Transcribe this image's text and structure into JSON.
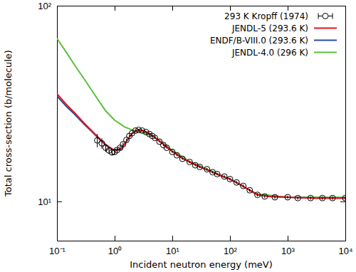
{
  "chart_data": {
    "type": "line",
    "x_label": "Incident neutron energy (meV)",
    "y_label": "Total cross-section (b/molecule)",
    "log": true,
    "grid": false,
    "legend": "upper right",
    "xlim": [
      0.1,
      10000
    ],
    "ylim": [
      6.3,
      100
    ],
    "xticks": [
      {
        "value": 0.1,
        "label": "10⁻¹"
      },
      {
        "value": 1,
        "label": "10⁰"
      },
      {
        "value": 10,
        "label": "10¹"
      },
      {
        "value": 100,
        "label": "10²"
      },
      {
        "value": 1000,
        "label": "10³"
      },
      {
        "value": 10000,
        "label": "10⁴"
      }
    ],
    "yticks": [
      {
        "value": 10,
        "label": "10¹"
      },
      {
        "value": 100,
        "label": "10²"
      }
    ],
    "series": [
      {
        "name": "293 K Kropff (1974)",
        "type": "scatter",
        "marker": "circle",
        "color": "#000000",
        "x": [
          0.5,
          0.6,
          0.7,
          0.8,
          0.9,
          1.0,
          1.1,
          1.25,
          1.4,
          1.6,
          1.8,
          2.0,
          2.3,
          2.6,
          3.0,
          3.5,
          4,
          4.5,
          5,
          6,
          7,
          8,
          10,
          12,
          15,
          20,
          25,
          30,
          40,
          50,
          60,
          80,
          100,
          130,
          170,
          220,
          300,
          400,
          600,
          1000,
          1500,
          2500,
          4000,
          6000,
          10000
        ],
        "values": [
          20.5,
          19.8,
          18.8,
          18.2,
          17.8,
          17.9,
          18.3,
          18.8,
          19.6,
          20.6,
          21.6,
          22.3,
          23.0,
          23.2,
          23.0,
          22.6,
          22.1,
          21.6,
          21.1,
          20.2,
          19.4,
          18.8,
          17.9,
          17.2,
          16.5,
          15.9,
          15.3,
          15.0,
          14.6,
          14.1,
          13.8,
          13.4,
          13.0,
          12.5,
          12.0,
          11.4,
          10.8,
          10.6,
          10.5,
          10.5,
          10.4,
          10.4,
          10.4,
          10.4,
          10.4
        ],
        "errors": [
          1.6,
          1.2,
          0.9,
          0.7,
          0.6,
          0.5,
          0.4,
          0.4,
          0.4,
          0.3,
          0.2,
          0.2,
          0.2,
          0.2,
          0.2,
          0.2,
          0.2,
          0.2,
          0.2,
          0.2,
          0.2,
          0.2,
          0.2,
          0.2,
          0.2,
          0.2,
          0.2,
          0.2,
          0.2,
          0.2,
          0.2,
          0.2,
          0.2,
          0.2,
          0.2,
          0.2,
          0.2,
          0.2,
          0.2,
          0.2,
          0.2,
          0.2,
          0.2,
          0.2,
          0.2
        ]
      },
      {
        "name": "JENDL-5 (293.6 K)",
        "type": "line",
        "line_style": "solid",
        "color": "#e8151b",
        "x": [
          0.1,
          0.15,
          0.2,
          0.3,
          0.4,
          0.5,
          0.7,
          1,
          1.3,
          1.6,
          2,
          2.5,
          3,
          4,
          5,
          7,
          10,
          15,
          20,
          30,
          50,
          70,
          100,
          150,
          200,
          300,
          500,
          1000,
          3000,
          10000
        ],
        "values": [
          35.5,
          31,
          28.5,
          25,
          23,
          21.5,
          19.5,
          18.2,
          18.6,
          20.3,
          22.2,
          23.2,
          23.1,
          22.2,
          21.2,
          19.6,
          18.0,
          16.6,
          15.9,
          15.0,
          14.1,
          13.5,
          13.0,
          12.2,
          11.6,
          10.8,
          10.6,
          10.5,
          10.4,
          10.4
        ]
      },
      {
        "name": "ENDF/B-VIII.0 (293.6 K)",
        "type": "line",
        "line_style": "solid",
        "color": "#2a4b9b",
        "x": [
          0.1,
          0.15,
          0.2,
          0.3,
          0.4,
          0.5,
          0.7,
          1,
          1.3,
          1.6,
          2,
          2.5,
          3,
          4,
          5,
          7,
          10,
          15,
          20,
          30,
          50,
          70,
          100,
          150,
          200,
          300,
          500,
          1000,
          3000,
          10000
        ],
        "values": [
          34.5,
          30.3,
          28,
          24.7,
          22.8,
          21.3,
          19.4,
          18.1,
          18.5,
          20.2,
          22.2,
          23.2,
          23.1,
          22.2,
          21.2,
          19.6,
          18.0,
          16.6,
          15.9,
          15.0,
          14.1,
          13.5,
          13.0,
          12.2,
          11.6,
          10.8,
          10.6,
          10.5,
          10.4,
          10.4
        ]
      },
      {
        "name": "JENDL-4.0 (296 K)",
        "type": "line",
        "line_style": "solid",
        "color": "#5cbf3a",
        "x": [
          0.1,
          0.15,
          0.2,
          0.3,
          0.5,
          0.7,
          1,
          1.5,
          2,
          3,
          5,
          7,
          10,
          20,
          50,
          100,
          200,
          300,
          1000,
          10000
        ],
        "values": [
          68,
          57,
          50,
          42,
          33.5,
          29,
          26,
          24,
          23.2,
          22.6,
          21.3,
          19.8,
          18.2,
          16.0,
          14.2,
          13.0,
          11.6,
          10.9,
          10.5,
          10.5
        ]
      }
    ]
  }
}
